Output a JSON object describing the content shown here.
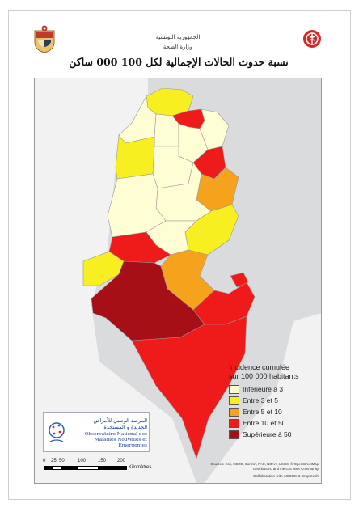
{
  "header": {
    "republic": "الجمهورية التونسية",
    "ministry": "وزارة الصحة"
  },
  "title": "نسبة حدوث الحالات الإجمالية لكل 100 000 ساكن",
  "colors": {
    "inf3": "#fffdd4",
    "c3to5": "#f7ef1f",
    "c5to10": "#f5a31c",
    "c10to50": "#ef1b1b",
    "sup50": "#a50f15",
    "sea": "#d9dbdc",
    "land": "#f2f2f2"
  },
  "legend": {
    "title_line1": "Incidence cumulée",
    "title_line2": "sur 100 000 habitants",
    "items": [
      {
        "label": "Inférieure à 3",
        "key": "inf3"
      },
      {
        "label": "Entre 3 et 5",
        "key": "c3to5"
      },
      {
        "label": "Entre 5 et 10",
        "key": "c5to10"
      },
      {
        "label": "Entre 10 et 50",
        "key": "c10to50"
      },
      {
        "label": "Supérieure à 50",
        "key": "sup50"
      }
    ]
  },
  "observatory": {
    "arabic_line1": "المرصد الوطني للأمراض",
    "arabic_line2": "الجديدة و المستجدة",
    "french_line1": "Observatoire National des",
    "french_line2": "Maladies Nouvelles et Emergentes"
  },
  "scale": {
    "ticks": [
      "0",
      "25",
      "50",
      "100",
      "150",
      "200"
    ],
    "unit": "Kilomètres"
  },
  "sources": {
    "line1": "Sources: Esri, HERE, Garmin, FAO, NOAA, USGS, © OpenStreetMap",
    "line2": "contributors, and the GIS User Community",
    "collab": "Collaboration with AGBOS & Graphtech"
  },
  "icons": {
    "left_emblem": "tunisia-coat-of-arms-icon",
    "right_logo": "ministry-health-logo-icon"
  }
}
